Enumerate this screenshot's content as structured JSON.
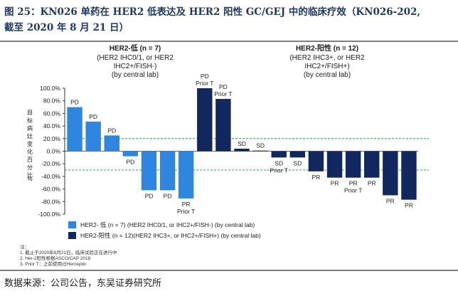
{
  "figure": {
    "title_line1": "图 25：KN026 单药在 HER2 低表达及 HER2 阳性 GC/GEJ 中的临床疗效（KN026-202,",
    "title_line2": "截至 2020 年 8 月 21 日）",
    "source": "数据来源：公司公告，东吴证券研究所"
  },
  "chart_data": {
    "type": "bar",
    "ylabel": "目标病灶变化百分比 %",
    "ylim": [
      -100,
      100
    ],
    "yticks": [
      "100.0%",
      "80.0%",
      "60.0%",
      "40.0%",
      "20.0%",
      "0.0%",
      "-20.0%",
      "-40.0%",
      "-60.0%",
      "-80.0%",
      "-100.0%"
    ],
    "reference_lines": [
      20,
      -30
    ],
    "groups": [
      {
        "title_bold": "HER2-低 (n = 7)",
        "title_lines": [
          "(HER2 IHC0/1, or HER2",
          "IHC2+/FISH-)",
          "(by central lab)"
        ],
        "color": "#2e86de"
      },
      {
        "title_bold": "HER2-阳性 (n = 12)",
        "title_lines": [
          "(HER2 IHC3+, or HER2",
          "IHC2+/FISH+)",
          "(by central lab)"
        ],
        "color": "#12275e"
      }
    ],
    "series": [
      {
        "group": 0,
        "values": [
          70,
          47,
          25,
          -8,
          -62,
          -62,
          -75
        ],
        "labels": [
          [
            "PD"
          ],
          [
            "PD"
          ],
          [
            "PD"
          ],
          [
            "PD"
          ],
          [
            "PD"
          ],
          [
            "PD"
          ],
          [
            "PR",
            "Prior T"
          ]
        ]
      },
      {
        "group": 1,
        "values": [
          100,
          83,
          4,
          1,
          -10,
          -10,
          -32,
          -42,
          -42,
          -42,
          -70,
          -77
        ],
        "labels": [
          [
            "PD",
            "Prior T"
          ],
          [
            "PD",
            "Prior T"
          ],
          [
            "SD"
          ],
          [
            "SD"
          ],
          [
            "SD",
            "Prior T"
          ],
          [
            "SD"
          ],
          [
            "PR"
          ],
          [
            "PR"
          ],
          [
            "PR",
            "Prior T"
          ],
          [
            "PR"
          ],
          [
            "PR"
          ],
          [
            "PR"
          ]
        ]
      }
    ],
    "legend": [
      "HER2- 低 (n = 7) (HER2 IHC0/1, or IHC2+/FISH-) (by central lab)",
      "HER2-阳性 (n = 12)(HER2 IHC3+, or IHC2+/FISH+) (by central lab)"
    ],
    "notes": [
      "注：",
      "1.    截止于2020年8月21日，临床试验正在进行中",
      "2.    Her-2阳性根据ASCO/CAP 2018",
      "3.    Prior T：之前使用过Herceptin"
    ]
  }
}
